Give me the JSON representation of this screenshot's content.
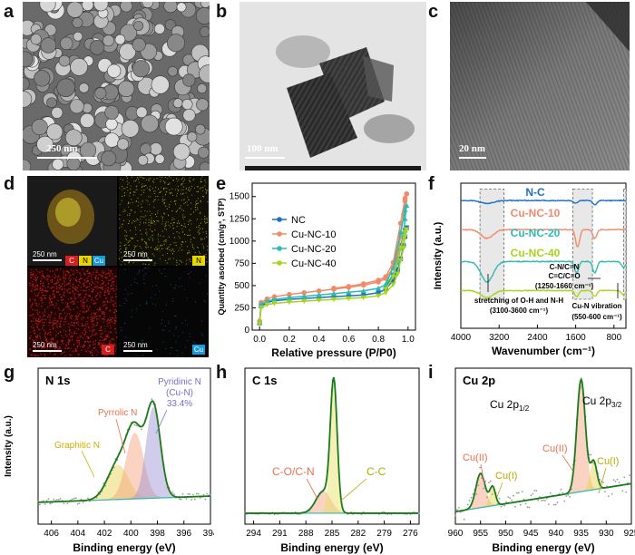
{
  "panels": {
    "a": {
      "letter": "a",
      "scale": "250 nm"
    },
    "b": {
      "letter": "b",
      "scale": "100 nm"
    },
    "c": {
      "letter": "c",
      "scale": "20 nm"
    },
    "d": {
      "letter": "d",
      "maps": [
        {
          "scale": "250 nm",
          "tags": [
            "C",
            "N",
            "Cu"
          ]
        },
        {
          "scale": "250 nm",
          "tags": [
            "N"
          ]
        },
        {
          "scale": "250 nm",
          "tags": [
            "C"
          ]
        },
        {
          "scale": "250 nm",
          "tags": [
            "Cu"
          ]
        }
      ]
    },
    "e": {
      "letter": "e"
    },
    "f": {
      "letter": "f"
    },
    "g": {
      "letter": "g"
    },
    "h": {
      "letter": "h"
    },
    "i": {
      "letter": "i"
    }
  },
  "colors": {
    "C": "#d42020",
    "N": "#e8d800",
    "Cu": "#1a9ad8",
    "green": "#1a7a1a"
  },
  "chart_data": [
    {
      "id": "e",
      "type": "line",
      "xlabel": "Relative pressure (P/P0)",
      "ylabel": "Quantity asorbed (cm/g³, STP)",
      "xlim": [
        -0.05,
        1.05
      ],
      "ylim": [
        0,
        1650
      ],
      "xticks": [
        "0.0",
        "0.2",
        "0.4",
        "0.6",
        "0.8",
        "1.0"
      ],
      "yticks": [
        "0",
        "250",
        "500",
        "750",
        "1000",
        "1250",
        "1500"
      ],
      "legend": "top-left",
      "series": [
        {
          "name": "NC",
          "color": "#1e6fc8",
          "marker": "square",
          "x": [
            0,
            0.01,
            0.05,
            0.1,
            0.2,
            0.3,
            0.4,
            0.5,
            0.6,
            0.7,
            0.8,
            0.85,
            0.9,
            0.93,
            0.95,
            0.97,
            0.98,
            0.99,
            0.99,
            0.98,
            0.95,
            0.9,
            0.85
          ],
          "y": [
            80,
            270,
            310,
            330,
            345,
            355,
            365,
            375,
            385,
            395,
            420,
            460,
            560,
            680,
            800,
            950,
            1050,
            1150,
            1150,
            1120,
            950,
            620,
            480
          ]
        },
        {
          "name": "Cu-NC-10",
          "color": "#f28a6a",
          "marker": "circle",
          "x": [
            0,
            0.01,
            0.05,
            0.1,
            0.2,
            0.3,
            0.4,
            0.5,
            0.6,
            0.7,
            0.8,
            0.85,
            0.9,
            0.93,
            0.95,
            0.97,
            0.98,
            0.99,
            0.99,
            0.98,
            0.95,
            0.9,
            0.85,
            0.8,
            0.7,
            0.6,
            0.5
          ],
          "y": [
            100,
            310,
            350,
            375,
            400,
            420,
            440,
            460,
            480,
            505,
            540,
            580,
            700,
            860,
            1050,
            1300,
            1450,
            1530,
            1530,
            1480,
            1200,
            760,
            600,
            560,
            520,
            490,
            470
          ]
        },
        {
          "name": "Cu-NC-20",
          "color": "#2bbcb4",
          "marker": "triangle",
          "x": [
            0,
            0.01,
            0.05,
            0.1,
            0.2,
            0.3,
            0.4,
            0.5,
            0.6,
            0.7,
            0.8,
            0.85,
            0.9,
            0.93,
            0.95,
            0.97,
            0.98,
            0.99,
            0.99,
            0.98,
            0.95,
            0.9,
            0.85
          ],
          "y": [
            90,
            290,
            325,
            345,
            365,
            380,
            395,
            410,
            425,
            440,
            470,
            510,
            620,
            760,
            920,
            1100,
            1250,
            1400,
            1400,
            1350,
            1100,
            700,
            520
          ]
        },
        {
          "name": "Cu-NC-40",
          "color": "#a8d41c",
          "marker": "triangle-down",
          "x": [
            0,
            0.01,
            0.05,
            0.1,
            0.2,
            0.3,
            0.4,
            0.5,
            0.6,
            0.7,
            0.8,
            0.85,
            0.9,
            0.93,
            0.95,
            0.97,
            0.98,
            0.99,
            0.99,
            0.98,
            0.95,
            0.9,
            0.85
          ],
          "y": [
            70,
            250,
            285,
            300,
            315,
            325,
            335,
            345,
            355,
            365,
            385,
            420,
            510,
            630,
            780,
            920,
            1050,
            1130,
            1130,
            1100,
            920,
            600,
            460
          ]
        }
      ]
    },
    {
      "id": "f",
      "type": "line",
      "xlabel": "Wavenumber (cm⁻¹)",
      "ylabel": "Intensity (a.u.)",
      "xlim": [
        4000,
        550
      ],
      "reversed": true,
      "xticks": [
        "4000",
        "3200",
        "2400",
        "1600",
        "800"
      ],
      "series": [
        {
          "name": "N-C",
          "color": "#1e6fc8",
          "offset": 0.88,
          "dips": [
            [
              3450,
              0.02
            ],
            [
              1600,
              0.02
            ],
            [
              1200,
              0.03
            ]
          ]
        },
        {
          "name": "Cu-NC-10",
          "color": "#f28a6a",
          "offset": 0.68,
          "dips": [
            [
              3450,
              0.06
            ],
            [
              1560,
              0.12
            ],
            [
              1200,
              0.06
            ]
          ]
        },
        {
          "name": "Cu-NC-20",
          "color": "#2bbcb4",
          "offset": 0.46,
          "dips": [
            [
              3450,
              0.14
            ],
            [
              1580,
              0.08
            ],
            [
              1200,
              0.08
            ],
            [
              600,
              0.04
            ]
          ]
        },
        {
          "name": "Cu-NC-40",
          "color": "#a8d41c",
          "offset": 0.26,
          "dips": [
            [
              3450,
              0.05
            ],
            [
              1580,
              0.04
            ],
            [
              1200,
              0.04
            ],
            [
              600,
              0.03
            ]
          ]
        }
      ],
      "annotations": [
        "C-N/C=N",
        "C=C/C=O",
        "(1250-1660 cm⁻¹)",
        "stretching of O-H and N-H",
        "(3100-3600 cm⁻¹)",
        "Cu-N vibration",
        "(550-600 cm⁻¹)"
      ]
    },
    {
      "id": "g",
      "type": "line",
      "title": "N 1s",
      "xlabel": "Binding energy (eV)",
      "ylabel": "Intensity (a.u.)",
      "xlim": [
        407,
        394
      ],
      "reversed": true,
      "xticks": [
        "406",
        "404",
        "402",
        "400",
        "398",
        "396",
        "394"
      ],
      "peaks": [
        {
          "name": "Graphitic N",
          "center": 401.0,
          "height": 0.22,
          "width": 1.1,
          "color": "#e8d24a"
        },
        {
          "name": "Pyrrolic N",
          "center": 399.7,
          "height": 0.42,
          "width": 0.9,
          "color": "#f4a07a"
        },
        {
          "name": "Pyridinic N (Cu-N)",
          "pct": "33.4%",
          "center": 398.3,
          "height": 0.58,
          "width": 0.75,
          "color": "#9a8fd4"
        }
      ],
      "labels": {
        "graphitic": "Graphitic N",
        "pyrrolic": "Pyrrolic N",
        "pyridinic1": "Pyridinic N",
        "pyridinic2": "(Cu-N)",
        "pyridinic3": "33.4%"
      }
    },
    {
      "id": "h",
      "type": "line",
      "title": "C 1s",
      "xlabel": "Binding energy (eV)",
      "xlim": [
        295,
        275
      ],
      "reversed": true,
      "xticks": [
        "294",
        "291",
        "288",
        "285",
        "282",
        "279",
        "276"
      ],
      "peaks": [
        {
          "name": "C-O/C-N",
          "center": 286.0,
          "height": 0.14,
          "width": 1.2,
          "color": "#f4a07a"
        },
        {
          "name": "C-C",
          "center": 284.8,
          "height": 0.82,
          "width": 0.55,
          "color": "#e8e060"
        }
      ],
      "labels": {
        "co": "C-O/C-N",
        "cc": "C-C"
      }
    },
    {
      "id": "i",
      "type": "line",
      "title": "Cu 2p",
      "xlabel": "Binding energy (eV)",
      "xlim": [
        960,
        925
      ],
      "reversed": true,
      "xticks": [
        "960",
        "955",
        "950",
        "945",
        "940",
        "935",
        "930",
        "925"
      ],
      "peaks": [
        {
          "name": "Cu(II)",
          "center": 955.0,
          "height": 0.22,
          "width": 1.3,
          "color": "#f4a07a"
        },
        {
          "name": "Cu(I)",
          "center": 952.6,
          "height": 0.12,
          "width": 0.8,
          "color": "#e8d24a"
        },
        {
          "name": "Cu(II)",
          "center": 935.0,
          "height": 0.72,
          "width": 1.2,
          "color": "#f4a07a"
        },
        {
          "name": "Cu(I)",
          "center": 932.5,
          "height": 0.18,
          "width": 0.9,
          "color": "#e8d24a"
        }
      ],
      "labels": {
        "cu2p12": "Cu 2p",
        "sub12": "1/2",
        "cu2p32": "Cu 2p",
        "sub32": "3/2",
        "cu2a": "Cu(II)",
        "cu1a": "Cu(I)",
        "cu2b": "Cu(II)",
        "cu1b": "Cu(I)"
      }
    }
  ]
}
